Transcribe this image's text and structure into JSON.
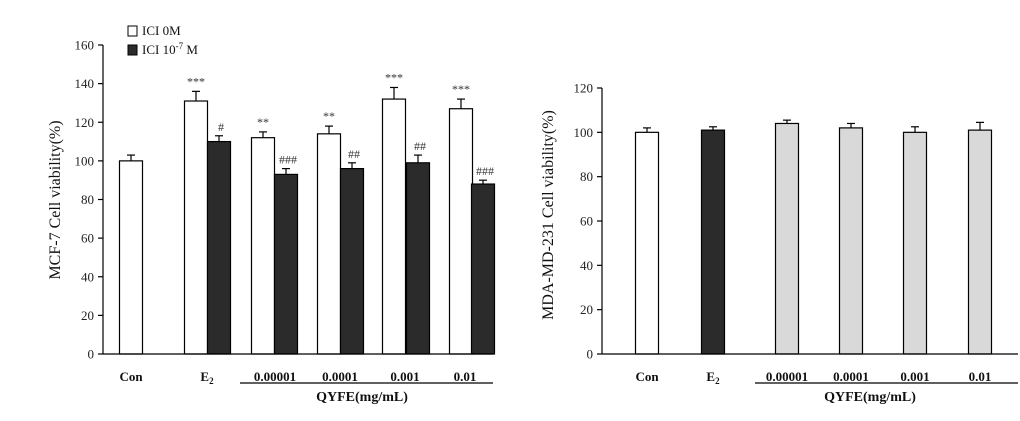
{
  "chart_data": [
    {
      "type": "bar",
      "ylabel": "MCF-7 Cell viability(%)",
      "ylim": [
        0,
        160
      ],
      "yticks": [
        0,
        20,
        40,
        60,
        80,
        100,
        120,
        140,
        160
      ],
      "categories": [
        "Con",
        "E",
        "0.00001",
        "0.0001",
        "0.001",
        "0.01"
      ],
      "category_subscript": [
        "",
        "2",
        "",
        "",
        "",
        ""
      ],
      "group_label": "QYFE(mg/mL)",
      "legend": {
        "base": "ICI 0M",
        "ici_prefix": "ICI 10",
        "ici_exp": "-7",
        "ici_unit": " M"
      },
      "series": [
        {
          "name": "ICI 0M",
          "values": [
            100,
            131,
            112,
            114,
            132,
            127
          ],
          "errors": [
            3,
            5,
            3,
            4,
            6,
            5
          ],
          "labels": [
            "",
            "***",
            "**",
            "**",
            "***",
            "***"
          ]
        },
        {
          "name": "ICI 10-7 M",
          "values": [
            null,
            110,
            93,
            96,
            99,
            88
          ],
          "errors": [
            null,
            3,
            3,
            3,
            4,
            2
          ],
          "labels": [
            "",
            "#",
            "###",
            "##",
            "##",
            "###"
          ]
        }
      ]
    },
    {
      "type": "bar",
      "ylabel": "MDA-MD-231 Cell viability(%)",
      "ylim": [
        0,
        120
      ],
      "yticks": [
        0,
        20,
        40,
        60,
        80,
        100,
        120
      ],
      "categories": [
        "Con",
        "E",
        "0.00001",
        "0.0001",
        "0.001",
        "0.01"
      ],
      "category_subscript": [
        "",
        "2",
        "",
        "",
        "",
        ""
      ],
      "group_label": "QYFE(mg/mL)",
      "series": [
        {
          "name": "Cell viability",
          "values": [
            100,
            101,
            104,
            102,
            100,
            101
          ],
          "errors": [
            2,
            1.5,
            1.5,
            2,
            2.5,
            3.5
          ]
        }
      ],
      "bar_colors": [
        "#ffffff",
        "#2b2b2b",
        "#d9d9d9",
        "#d9d9d9",
        "#d9d9d9",
        "#d9d9d9"
      ]
    }
  ],
  "colors": {
    "white_bar": "#ffffff",
    "dark_bar": "#2b2b2b",
    "gray_bar": "#d9d9d9",
    "axis": "#000000"
  }
}
